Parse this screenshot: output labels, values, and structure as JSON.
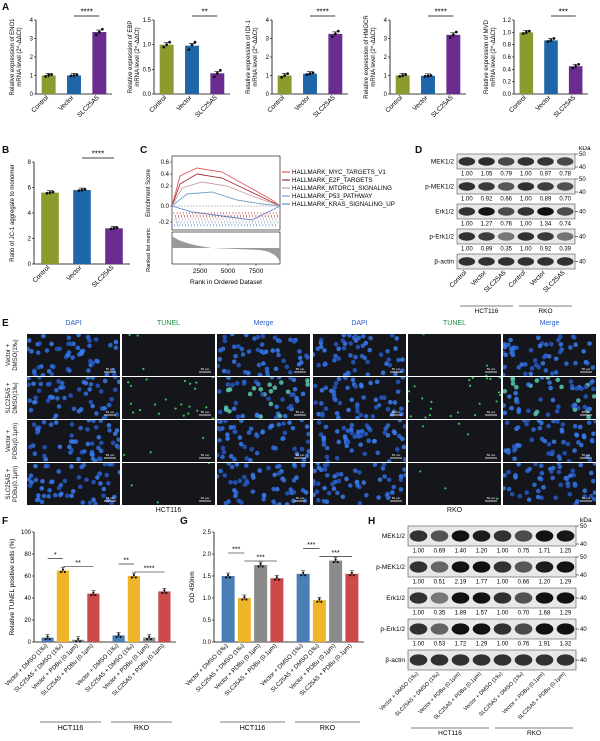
{
  "panels": {
    "A": "A",
    "B": "B",
    "C": "C",
    "D": "D",
    "E": "E",
    "F": "F",
    "G": "G",
    "H": "H"
  },
  "colors": {
    "control": "#8c9a2e",
    "vector": "#1f66a8",
    "slc25a5": "#6a2d8f",
    "green_bar": "#2e8b57",
    "tunel_vd": "#4a7fb5",
    "tunel_yellow": "#f0b429",
    "tunel_red": "#cd4a4a",
    "grey": "#8a8a8a"
  },
  "chart_data": [
    {
      "id": "A1",
      "type": "bar",
      "ylabel_top": "Relative expression of ENO1",
      "ylabel_bottom": "mRNA level (2^-ΔΔCt)",
      "categories": [
        "Control",
        "Vector",
        "SLC25A5"
      ],
      "values": [
        1.0,
        1.0,
        3.35
      ],
      "points": [
        [
          0.95,
          1.02,
          1.05
        ],
        [
          0.98,
          1.0,
          1.04
        ],
        [
          3.2,
          3.35,
          3.5
        ]
      ],
      "ylim": [
        0,
        4
      ],
      "yticks": [
        "0",
        "1",
        "2",
        "3",
        "4"
      ],
      "sig": "****"
    },
    {
      "id": "A2",
      "type": "bar",
      "ylabel_top": "Relative expression of EBP",
      "ylabel_bottom": "mRNA level (2^-ΔΔCt)",
      "categories": [
        "Control",
        "Vector",
        "SLC25A5"
      ],
      "values": [
        1.0,
        0.98,
        0.42
      ],
      "points": [
        [
          0.95,
          1.0,
          1.05
        ],
        [
          0.9,
          1.0,
          1.05
        ],
        [
          0.35,
          0.42,
          0.48
        ]
      ],
      "ylim": [
        0,
        1.5
      ],
      "yticks": [
        "0.0",
        "0.5",
        "1.0",
        "1.5"
      ],
      "sig": "**"
    },
    {
      "id": "A3",
      "type": "bar",
      "ylabel_top": "Relative expression of IDI-1",
      "ylabel_bottom": "mRNA level (2^-ΔΔCt)",
      "categories": [
        "Control",
        "Vector",
        "SLC25A5"
      ],
      "values": [
        1.0,
        1.1,
        3.25
      ],
      "points": [
        [
          0.9,
          1.0,
          1.1
        ],
        [
          1.05,
          1.1,
          1.15
        ],
        [
          3.1,
          3.25,
          3.4
        ]
      ],
      "ylim": [
        0,
        4
      ],
      "yticks": [
        "0",
        "1",
        "2",
        "3",
        "4"
      ],
      "sig": "****"
    },
    {
      "id": "A4",
      "type": "bar",
      "ylabel_top": "Relative expression of HMGCR",
      "ylabel_bottom": "mRNA level (2^-ΔΔCt)",
      "categories": [
        "Control",
        "Vector",
        "SLC25A5"
      ],
      "values": [
        1.0,
        0.98,
        3.2
      ],
      "points": [
        [
          0.95,
          1.0,
          1.05
        ],
        [
          0.95,
          0.98,
          1.0
        ],
        [
          3.05,
          3.2,
          3.35
        ]
      ],
      "ylim": [
        0,
        4
      ],
      "yticks": [
        "0",
        "1",
        "2",
        "3",
        "4"
      ],
      "sig": "****"
    },
    {
      "id": "A5",
      "type": "bar",
      "ylabel_top": "Relative expression of MVD",
      "ylabel_bottom": "mRNA level (2^-ΔΔCt)",
      "categories": [
        "Control",
        "Vector",
        "SLC25A5"
      ],
      "values": [
        1.0,
        0.87,
        0.45
      ],
      "points": [
        [
          0.98,
          1.0,
          1.02
        ],
        [
          0.85,
          0.87,
          0.9
        ],
        [
          0.42,
          0.45,
          0.48
        ]
      ],
      "ylim": [
        0,
        1.2
      ],
      "yticks": [
        "0.0",
        "0.2",
        "0.4",
        "0.6",
        "0.8",
        "1.0",
        "1.2"
      ],
      "sig": "***"
    },
    {
      "id": "B",
      "type": "bar",
      "ylabel": "Ratio of JC-1 aggregate to monomer",
      "categories": [
        "Control",
        "Vector",
        "SLC25A5"
      ],
      "values": [
        5.6,
        5.8,
        2.8
      ],
      "points": [
        [
          5.55,
          5.6,
          5.65
        ],
        [
          5.75,
          5.8,
          5.85
        ],
        [
          2.75,
          2.8,
          2.85
        ]
      ],
      "ylim": [
        0,
        8
      ],
      "yticks": [
        "0",
        "2",
        "4",
        "6",
        "8"
      ],
      "sig": "****"
    },
    {
      "id": "F",
      "type": "bar",
      "ylabel": "Relative TUNEL positive cells (%)",
      "groups": [
        "HCT116",
        "RKO"
      ],
      "categories": [
        "Vector + DMSO (1‰)",
        "SLC25A5 + DMSO (1‰)",
        "Vector + PDBu (0.1μm)",
        "SLC25A5 + PDBu (0.1μm)"
      ],
      "series": [
        {
          "group": "HCT116",
          "values": [
            4,
            65,
            2,
            44
          ]
        },
        {
          "group": "RKO",
          "values": [
            6,
            60,
            4,
            46
          ]
        }
      ],
      "ylim": [
        0,
        100
      ],
      "yticks": [
        "0",
        "20",
        "40",
        "60",
        "80",
        "100"
      ],
      "sig": [
        "*",
        "**",
        "**",
        "****"
      ]
    },
    {
      "id": "G",
      "type": "bar",
      "ylabel": "OD 450nm",
      "groups": [
        "HCT116",
        "RKO"
      ],
      "categories": [
        "Vector + DMSO (1‰)",
        "SLC25A5 + DMSO (1‰)",
        "Vector + PDBu (0.1μm)",
        "SLC25A5 + PDBu (0.1μm)"
      ],
      "series": [
        {
          "group": "HCT116",
          "values": [
            1.5,
            1.0,
            1.75,
            1.45
          ]
        },
        {
          "group": "RKO",
          "values": [
            1.55,
            0.95,
            1.85,
            1.55
          ]
        }
      ],
      "ylim": [
        0,
        2.5
      ],
      "yticks": [
        "0.0",
        "0.5",
        "1.0",
        "1.5",
        "2.0",
        "2.5"
      ],
      "sig": [
        "***",
        "***",
        "***",
        "***"
      ]
    }
  ],
  "gsea": {
    "ylabel": "Enrichment Score",
    "ylabel2": "Ranked list metric",
    "xlabel": "Rank in Ordered Dataset",
    "yticks": [
      "0.6",
      "0.4",
      "0.2",
      "0.0",
      "-0.2"
    ],
    "xticks": [
      "2500",
      "5000",
      "7500"
    ],
    "legend": [
      "HALLMARK_MYC_TARGETS_V1",
      "HALLMARK_E2F_TARGETS",
      "HALLMARK_MTORC1_SIGNALING",
      "HALLMARK_P53_PATHWAY",
      "HALLMARK_KRAS_SIGNALING_UP"
    ],
    "colors": [
      "#e05a5a",
      "#a0303a",
      "#c9a0a0",
      "#7aa3c9",
      "#5d8bd6"
    ]
  },
  "blotD": {
    "kda": "kDa",
    "rows": [
      {
        "label": "MEK1/2",
        "values": [
          "1.00",
          "1.05",
          "0.79",
          "1.00",
          "0.97",
          "0.78"
        ],
        "mw": [
          "50",
          "40"
        ]
      },
      {
        "label": "p-MEK1/2",
        "values": [
          "1.00",
          "0.92",
          "0.66",
          "1.00",
          "0.89",
          "0.70"
        ],
        "mw": [
          "50",
          "40"
        ]
      },
      {
        "label": "Erk1/2",
        "values": [
          "1.00",
          "1.27",
          "0.76",
          "1.00",
          "1.34",
          "0.74"
        ],
        "mw": [
          "40"
        ]
      },
      {
        "label": "p-Erk1/2",
        "values": [
          "1.00",
          "0.89",
          "0.35",
          "1.00",
          "0.92",
          "0.39"
        ],
        "mw": [
          "40"
        ]
      },
      {
        "label": "β-actin",
        "values": [],
        "mw": [
          "40"
        ]
      }
    ],
    "lanes": [
      "Control",
      "Vector",
      "SLC25A5",
      "Control",
      "Vector",
      "SLC25A5"
    ],
    "groups": [
      "HCT116",
      "RKO"
    ]
  },
  "tunelE": {
    "cols": [
      "DAPI",
      "TUNEL",
      "Merge",
      "DAPI",
      "TUNEL",
      "Merge"
    ],
    "rows": [
      "Vector +\nDMSO(1‰)",
      "SLC25A5 +\nDMSO(1‰)",
      "Vector +\nPDBu(0.1μm)",
      "SLC25A5 +\nPDBu(0.1μm)"
    ],
    "groups": [
      "HCT116",
      "RKO"
    ],
    "scale": "50 μm"
  },
  "blotH": {
    "kda": "kDa",
    "rows": [
      {
        "label": "MEK1/2",
        "values": [
          "1.00",
          "0.69",
          "1.40",
          "1.20",
          "1.00",
          "0.75",
          "1.71",
          "1.25"
        ],
        "mw": [
          "50",
          "40"
        ]
      },
      {
        "label": "p-MEK1/2",
        "values": [
          "1.00",
          "0.51",
          "2.19",
          "1.77",
          "1.00",
          "0.66",
          "1.20",
          "1.29"
        ],
        "mw": [
          "50",
          "40"
        ]
      },
      {
        "label": "Erk1/2",
        "values": [
          "1.00",
          "0.35",
          "1.89",
          "1.57",
          "1.00",
          "0.70",
          "1.68",
          "1.29"
        ],
        "mw": [
          "40"
        ]
      },
      {
        "label": "p-Erk1/2",
        "values": [
          "1.00",
          "0.53",
          "1.72",
          "1.29",
          "1.00",
          "0.76",
          "1.91",
          "1.32"
        ],
        "mw": [
          "40"
        ]
      },
      {
        "label": "β-actin",
        "values": [],
        "mw": [
          "40"
        ]
      }
    ],
    "lanes": [
      "Vector + DMSO (1‰)",
      "SLC25A5 + DMSO (1‰)",
      "Vector + PDBu (0.1μm)",
      "SLC25A5 + PDBu (0.1μm)",
      "Vector + DMSO (1‰)",
      "SLC25A5 + DMSO (1‰)",
      "Vector + PDBu (0.1μm)",
      "SLC25A5 + PDBu (0.1μm)"
    ],
    "groups": [
      "HCT116",
      "RKO"
    ]
  }
}
